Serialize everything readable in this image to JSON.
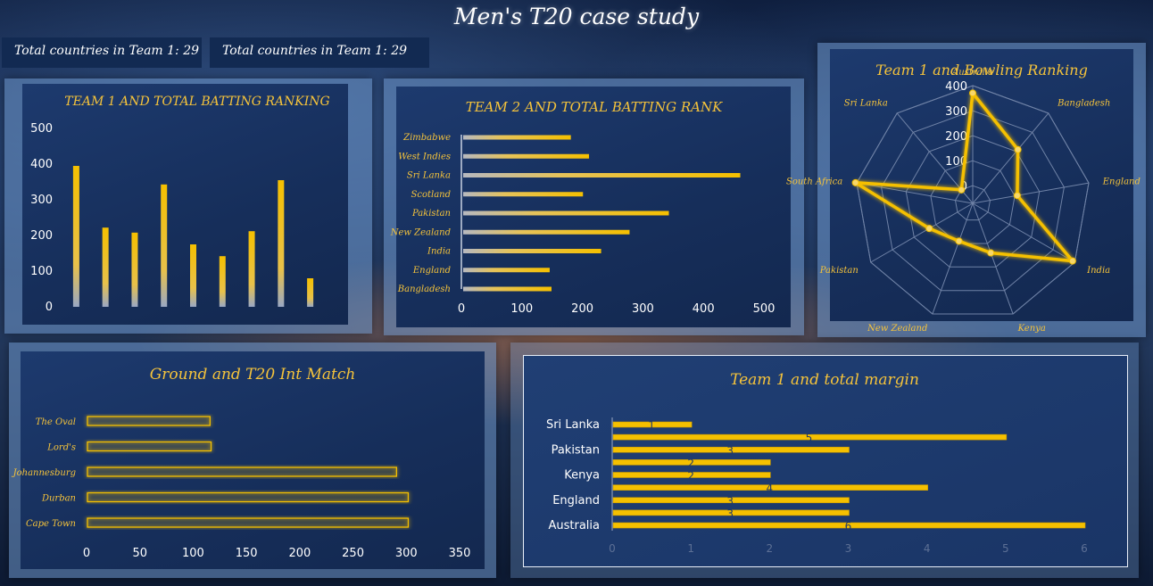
{
  "page": {
    "title": "Men's T20 case study"
  },
  "kpis": [
    {
      "label": "Total countries in Team 1: 29"
    },
    {
      "label": "Total countries in Team 1: 29"
    }
  ],
  "colors": {
    "gold": "#f5c33b",
    "gold_dark": "#d9a400",
    "panel": "#1a3465",
    "text": "#ffffff"
  },
  "chart_data": [
    {
      "id": "team1-batting",
      "type": "bar",
      "title": "TEAM 1 AND TOTAL BATTING RANKING",
      "values": [
        395,
        222,
        208,
        343,
        175,
        142,
        212,
        355,
        80
      ],
      "ylim": [
        0,
        500
      ],
      "yticks": [
        0,
        100,
        200,
        300,
        400,
        500
      ],
      "grid": false
    },
    {
      "id": "team2-batting",
      "type": "bar",
      "orientation": "horizontal",
      "title": "TEAM 2 AND TOTAL BATTING RANK",
      "categories": [
        "Zimbabwe",
        "West Indies",
        "Sri Lanka",
        "Scotland",
        "Pakistan",
        "New Zealand",
        "India",
        "England",
        "Bangladesh"
      ],
      "values": [
        178,
        208,
        458,
        198,
        340,
        275,
        228,
        143,
        146
      ],
      "xlim": [
        0,
        500
      ],
      "xticks": [
        0,
        100,
        200,
        300,
        400,
        500
      ]
    },
    {
      "id": "team1-bowling",
      "type": "radar",
      "title": "Team 1 and Bowling Ranking",
      "categories": [
        "Australia",
        "Bangladesh",
        "England",
        "India",
        "Kenya",
        "New Zealand",
        "Pakistan",
        "South Africa",
        "Sri Lanka"
      ],
      "values": [
        370,
        210,
        110,
        390,
        140,
        90,
        130,
        405,
        0
      ],
      "rlim": [
        0,
        400
      ],
      "rticks": [
        0,
        100,
        200,
        300,
        400
      ]
    },
    {
      "id": "ground-matches",
      "type": "bar",
      "orientation": "horizontal",
      "title": "Ground and T20 Int Match",
      "categories": [
        "The Oval",
        "Lord's",
        "Johannesburg",
        "Durban",
        "Cape Town"
      ],
      "values": [
        115,
        116,
        290,
        301,
        301
      ],
      "xlim": [
        0,
        350
      ],
      "xticks": [
        0,
        50,
        100,
        150,
        200,
        250,
        300,
        350
      ]
    },
    {
      "id": "team1-margin",
      "type": "bar",
      "orientation": "horizontal",
      "title": "Team 1 and total margin",
      "category_labels": [
        "Sri Lanka",
        "Pakistan",
        "Kenya",
        "England",
        "Australia"
      ],
      "values": [
        1,
        5,
        3,
        2,
        2,
        4,
        3,
        3,
        6
      ],
      "data_labels": [
        "1",
        "5",
        "3",
        "2",
        "2",
        "4",
        "3",
        "3",
        "6"
      ],
      "xlim": [
        0,
        6
      ],
      "xticks": [
        0,
        1,
        2,
        3,
        4,
        5,
        6
      ]
    }
  ]
}
